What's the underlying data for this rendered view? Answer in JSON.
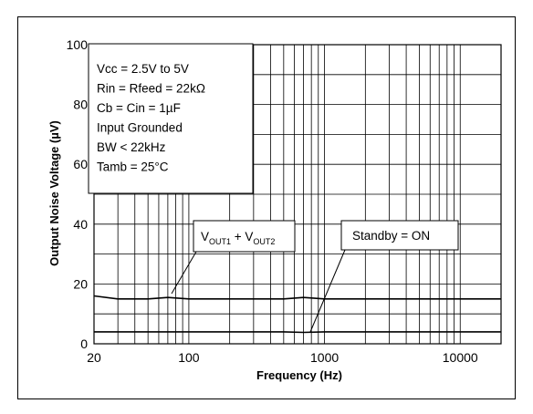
{
  "chart_data": {
    "type": "line",
    "title": "",
    "xlabel": "Frequency (Hz)",
    "ylabel": "Output Noise Voltage (µV)",
    "x_scale": "log",
    "xlim": [
      20,
      20000
    ],
    "ylim": [
      0,
      100
    ],
    "x_ticks": [
      "20",
      "100",
      "1000",
      "10000"
    ],
    "y_ticks": [
      "0",
      "20",
      "40",
      "60",
      "80",
      "100"
    ],
    "grid": true,
    "conditions": [
      "Vcc = 2.5V to 5V",
      "Rin = Rfeed = 22kΩ",
      "Cb = Cin = 1µF",
      "Input Grounded",
      "BW < 22kHz",
      "Tamb = 25°C"
    ],
    "series": [
      {
        "label_parts": [
          "V",
          "OUT1",
          " + V",
          "OUT2"
        ],
        "x": [
          20,
          30,
          50,
          70,
          100,
          200,
          300,
          500,
          700,
          1000,
          2000,
          3000,
          5000,
          7000,
          10000,
          15000,
          20000
        ],
        "values": [
          16,
          15,
          15,
          15.5,
          15,
          15,
          15,
          15,
          15.5,
          15,
          15,
          15,
          15,
          15,
          15,
          15,
          15
        ]
      },
      {
        "label": "Standby = ON",
        "x": [
          20,
          30,
          50,
          70,
          100,
          200,
          300,
          500,
          700,
          1000,
          2000,
          3000,
          5000,
          7000,
          10000,
          15000,
          20000
        ],
        "values": [
          4,
          4,
          4,
          4,
          4,
          4,
          4,
          4,
          3.8,
          4,
          4,
          4,
          4,
          4,
          4,
          4,
          4
        ]
      }
    ]
  }
}
